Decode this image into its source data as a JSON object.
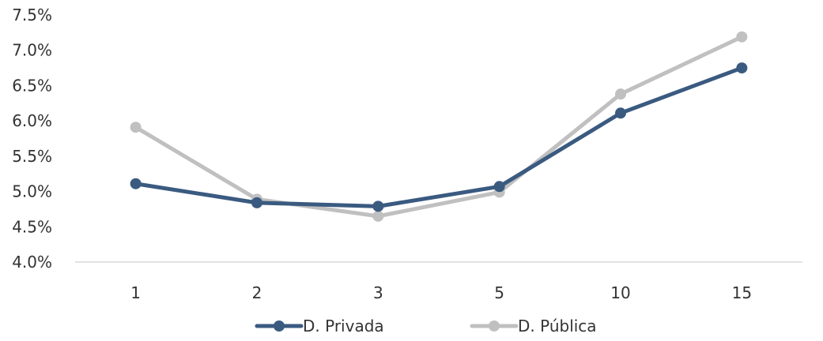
{
  "chart_data": {
    "type": "line",
    "categories": [
      "1",
      "2",
      "3",
      "5",
      "10",
      "15"
    ],
    "ylim": [
      0.04,
      0.075
    ],
    "yticks": [
      {
        "value": 0.04,
        "label": "4.0%"
      },
      {
        "value": 0.045,
        "label": "4.5%"
      },
      {
        "value": 0.05,
        "label": "5.0%"
      },
      {
        "value": 0.055,
        "label": "5.5%"
      },
      {
        "value": 0.06,
        "label": "6.0%"
      },
      {
        "value": 0.065,
        "label": "6.5%"
      },
      {
        "value": 0.07,
        "label": "7.0%"
      },
      {
        "value": 0.075,
        "label": "7.5%"
      }
    ],
    "series": [
      {
        "name": "D. Privada",
        "color": "#3a5a80",
        "values": [
          0.0511,
          0.0484,
          0.0479,
          0.0507,
          0.0611,
          0.0675
        ]
      },
      {
        "name": "D. Pública",
        "color": "#c0c0c0",
        "values": [
          0.0591,
          0.0489,
          0.0465,
          0.0499,
          0.0638,
          0.0719
        ]
      }
    ],
    "legend": "bottom-center",
    "grid": false
  }
}
